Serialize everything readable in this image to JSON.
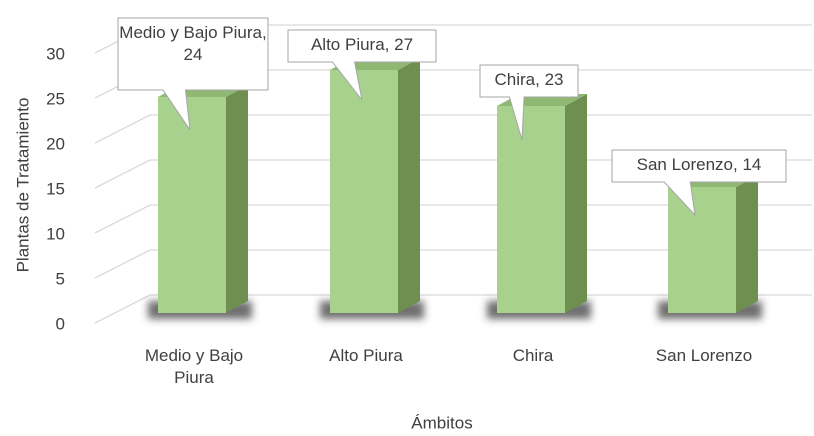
{
  "chart_data": {
    "type": "bar3d",
    "categories": [
      "Medio y Bajo Piura",
      "Alto Piura",
      "Chira",
      "San Lorenzo"
    ],
    "values": [
      24,
      27,
      23,
      14
    ],
    "value_labels": [
      "Medio y Bajo Piura, 24",
      "Alto Piura, 27",
      "Chira, 23",
      "San Lorenzo, 14"
    ],
    "x_label": "Ámbitos",
    "y_label": "Plantas de Tratamiento",
    "color": "#a9d18e",
    "ylim": [
      0,
      30
    ],
    "yticks": [
      0,
      5,
      10,
      15,
      20,
      25,
      30
    ],
    "grid": true
  }
}
